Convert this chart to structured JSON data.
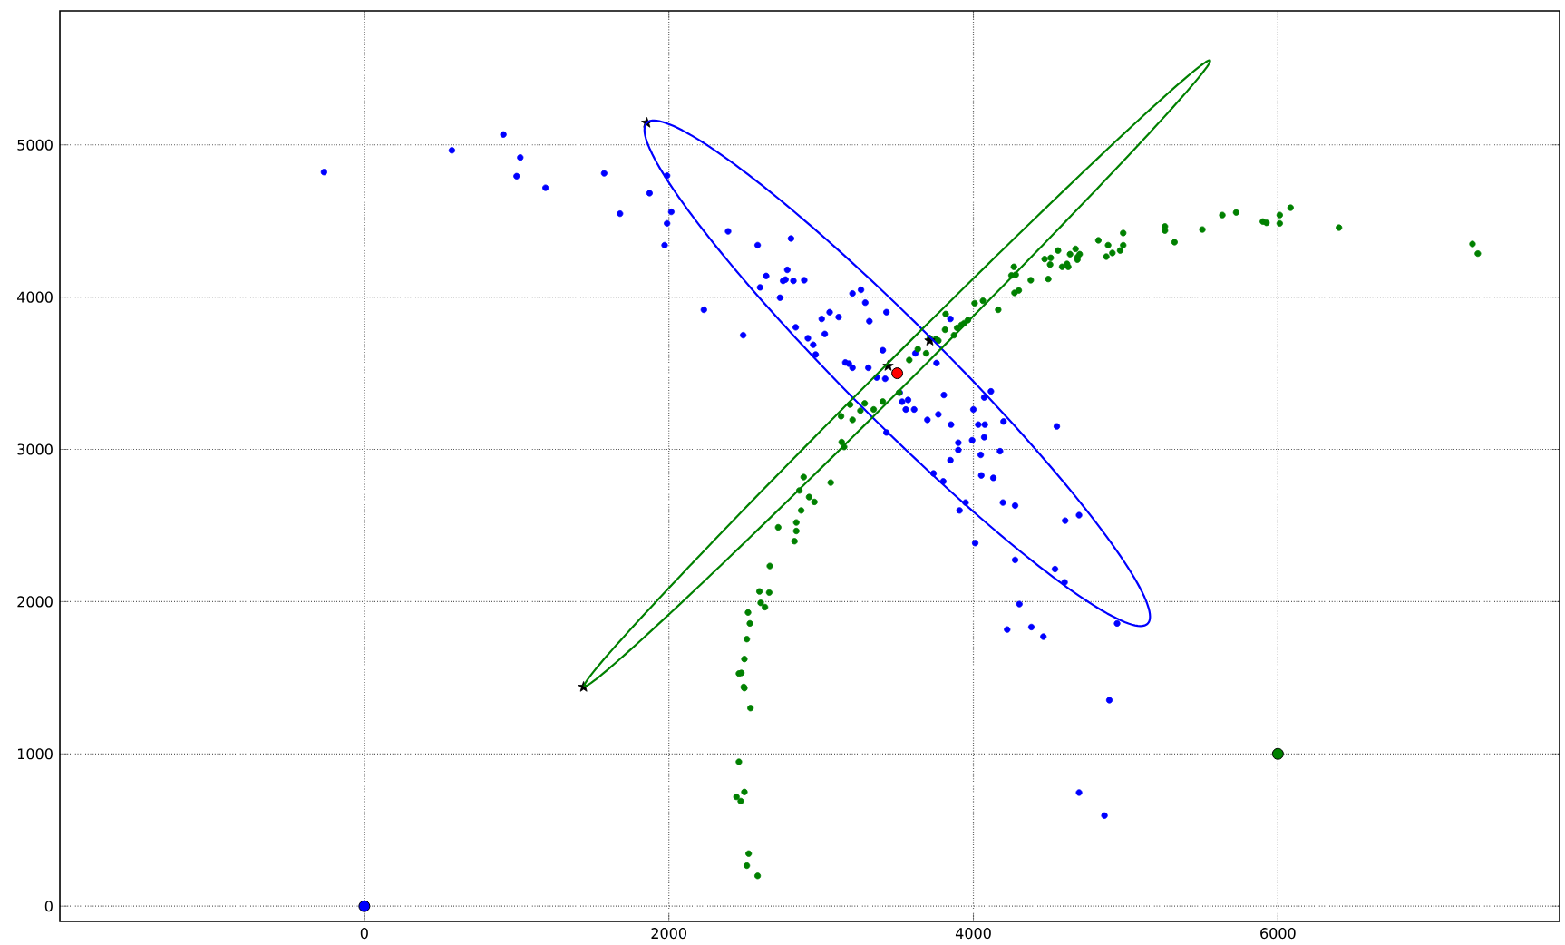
{
  "chart_data": {
    "type": "scatter",
    "xlim": [
      -2000,
      7850
    ],
    "ylim": [
      -100,
      5880
    ],
    "xticks": [
      0,
      2000,
      4000,
      6000
    ],
    "yticks": [
      0,
      1000,
      2000,
      3000,
      4000,
      5000
    ],
    "grid": true,
    "series": [
      {
        "color": "#0000ff",
        "marker": "circle",
        "x": [
          -265,
          575,
          913,
          1024,
          1000,
          1190,
          1575,
          1873,
          1679,
          1988,
          2016,
          1988,
          1972,
          2389,
          2583,
          2802,
          2778,
          2639,
          2750,
          2766,
          2818,
          2889,
          2599,
          2730,
          2230,
          2488,
          2833,
          2913,
          2948,
          2964,
          3206,
          3262,
          3290,
          3429,
          3317,
          3056,
          3115,
          3004,
          3024,
          3159,
          3182,
          3206,
          3310,
          3405,
          3365,
          3421,
          3516,
          3532,
          3571,
          3556,
          3611,
          3429,
          3619,
          3758,
          3849,
          3698,
          3770,
          3806,
          3853,
          4000,
          4071,
          4115,
          4032,
          4075,
          4198,
          3992,
          3901,
          3901,
          4048,
          4071,
          4175,
          3849,
          4548,
          3738,
          3802,
          4052,
          4131,
          3949,
          4194,
          4274,
          3909,
          4603,
          4694,
          4012,
          4274,
          4536,
          4599,
          4302,
          4944,
          4222,
          4381,
          4460,
          4893,
          4694,
          4861
        ],
        "values": [
          4821,
          4964,
          5068,
          4917,
          4794,
          4718,
          4813,
          4683,
          4548,
          4798,
          4560,
          4484,
          4341,
          4432,
          4341,
          4385,
          4179,
          4139,
          4107,
          4115,
          4107,
          4111,
          4064,
          3996,
          3917,
          3750,
          3802,
          3730,
          3687,
          3623,
          4024,
          4048,
          3964,
          3901,
          3842,
          3901,
          3869,
          3857,
          3758,
          3571,
          3563,
          3536,
          3536,
          3651,
          3472,
          3464,
          3373,
          3313,
          3325,
          3262,
          3262,
          3111,
          3631,
          3567,
          3857,
          3194,
          3230,
          3357,
          3163,
          3262,
          3341,
          3381,
          3163,
          3163,
          3183,
          3060,
          3044,
          2996,
          2964,
          3080,
          2988,
          2929,
          3151,
          2842,
          2790,
          2829,
          2813,
          2651,
          2651,
          2631,
          2599,
          2532,
          2568,
          2385,
          2274,
          2214,
          2127,
          1984,
          1857,
          1817,
          1833,
          1770,
          1353,
          746,
          595
        ]
      },
      {
        "color": "#008000",
        "marker": "circle",
        "x": [
          7278,
          7313,
          6401,
          6083,
          6012,
          6012,
          5901,
          5925,
          5726,
          5635,
          5504,
          5321,
          5258,
          5258,
          4984,
          4984,
          4964,
          4913,
          4873,
          4885,
          4821,
          4698,
          4683,
          4683,
          4671,
          4635,
          4615,
          4583,
          4623,
          4556,
          4508,
          4468,
          4504,
          4492,
          4377,
          4266,
          4278,
          4250,
          4298,
          4270,
          4163,
          4063,
          4008,
          3964,
          3940,
          3921,
          3893,
          3818,
          3814,
          3873,
          3754,
          3714,
          3770,
          3690,
          3635,
          3579,
          3512,
          3405,
          3345,
          3286,
          3258,
          3190,
          3206,
          3131,
          3135,
          3151,
          2885,
          3063,
          2857,
          2921,
          2956,
          2869,
          2718,
          2837,
          2837,
          2825,
          2663,
          2595,
          2659,
          2603,
          2631,
          2520,
          2532,
          2512,
          2496,
          2460,
          2476,
          2492,
          2496,
          2536,
          2460,
          2496,
          2444,
          2472,
          2524,
          2512,
          2583
        ],
        "values": [
          4349,
          4286,
          4456,
          4587,
          4539,
          4484,
          4496,
          4488,
          4556,
          4539,
          4444,
          4361,
          4464,
          4437,
          4421,
          4341,
          4306,
          4290,
          4266,
          4341,
          4373,
          4282,
          4262,
          4246,
          4317,
          4282,
          4218,
          4199,
          4199,
          4306,
          4258,
          4250,
          4214,
          4119,
          4111,
          4199,
          4147,
          4143,
          4044,
          4028,
          3917,
          3976,
          3960,
          3849,
          3829,
          3817,
          3798,
          3889,
          3786,
          3750,
          3726,
          3730,
          3714,
          3631,
          3659,
          3587,
          3373,
          3314,
          3262,
          3302,
          3254,
          3294,
          3194,
          3218,
          3048,
          3016,
          2818,
          2782,
          2730,
          2687,
          2655,
          2599,
          2488,
          2520,
          2464,
          2397,
          2234,
          2067,
          2060,
          1992,
          1964,
          1929,
          1857,
          1754,
          1623,
          1528,
          1532,
          1440,
          1432,
          1301,
          948,
          750,
          718,
          690,
          345,
          266,
          199
        ]
      },
      {
        "color": "#000000",
        "marker": "star",
        "x": [
          1855,
          1440,
          3440,
          3714
        ],
        "values": [
          5145,
          1440,
          3548,
          3714
        ]
      },
      {
        "color": "#ff0000",
        "marker": "circle",
        "x": [
          3500
        ],
        "values": [
          3500
        ]
      },
      {
        "color": "#0000ff",
        "marker": "circle",
        "x": [
          0
        ],
        "values": [
          0
        ]
      },
      {
        "color": "#008000",
        "marker": "circle",
        "x": [
          6000
        ],
        "values": [
          1000
        ]
      }
    ]
  }
}
